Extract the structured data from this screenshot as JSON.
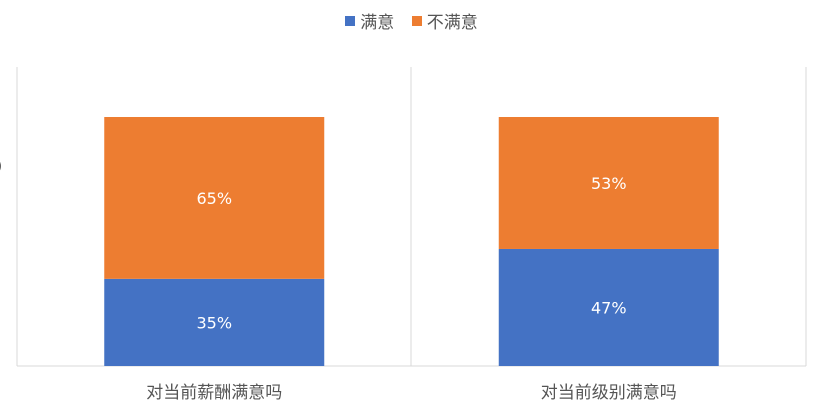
{
  "chart_data": {
    "type": "bar",
    "stacked": true,
    "percent_stacked": true,
    "categories": [
      "对当前薪酬满意吗",
      "对当前级别满意吗"
    ],
    "series": [
      {
        "name": "满意",
        "values": [
          35,
          47
        ],
        "color": "#4472C4"
      },
      {
        "name": "不满意",
        "values": [
          65,
          53
        ],
        "color": "#ED7D31"
      }
    ],
    "value_suffix": "%",
    "ylim": [
      0,
      100
    ],
    "legend_position": "top-center",
    "grid": false,
    "panel_separators": true
  },
  "stray_tick": ")"
}
